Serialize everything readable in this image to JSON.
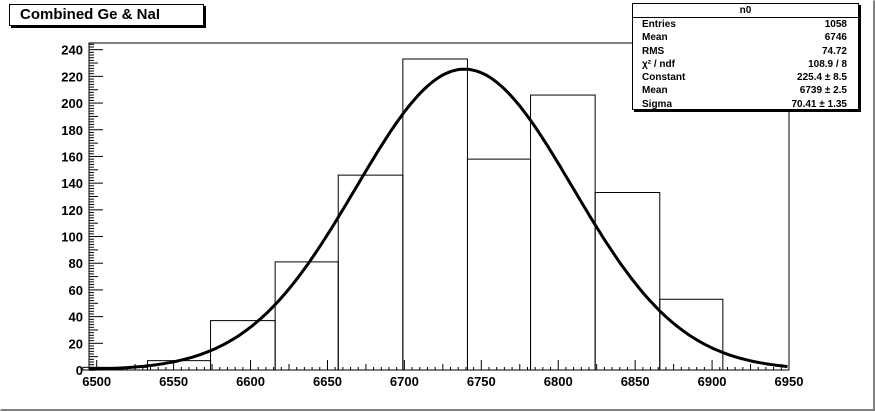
{
  "chart_data": {
    "type": "bar",
    "title": "Combined Ge & NaI",
    "xlabel": "",
    "ylabel": "",
    "xlim": [
      6495,
      6950
    ],
    "ylim": [
      0,
      245
    ],
    "x_ticks": [
      6500,
      6550,
      6600,
      6650,
      6700,
      6750,
      6800,
      6850,
      6900,
      6950
    ],
    "y_ticks": [
      0,
      20,
      40,
      60,
      80,
      100,
      120,
      140,
      160,
      180,
      200,
      220,
      240
    ],
    "histogram": {
      "name": "n0",
      "bin_edges": [
        6491,
        6533,
        6574,
        6616,
        6657,
        6699,
        6741,
        6782,
        6824,
        6866,
        6907,
        6949
      ],
      "counts": [
        2,
        7,
        37,
        81,
        146,
        233,
        158,
        206,
        133,
        53,
        0
      ]
    },
    "fit": {
      "function": "gaus",
      "constant": 225.4,
      "mean": 6739,
      "sigma": 70.41
    },
    "stats": {
      "title": "n0",
      "rows": [
        {
          "label": "Entries",
          "value": "1058"
        },
        {
          "label": "Mean",
          "value": "6746"
        },
        {
          "label": "RMS",
          "value": "74.72"
        },
        {
          "label": "χ² / ndf",
          "value": "108.9 / 8"
        },
        {
          "label": "Constant",
          "value": "225.4 ± 8.5"
        },
        {
          "label": "Mean",
          "value": "6739 ± 2.5"
        },
        {
          "label": "Sigma",
          "value": "70.41 ± 1.35"
        }
      ]
    },
    "grid": false,
    "legend": "top-right"
  }
}
